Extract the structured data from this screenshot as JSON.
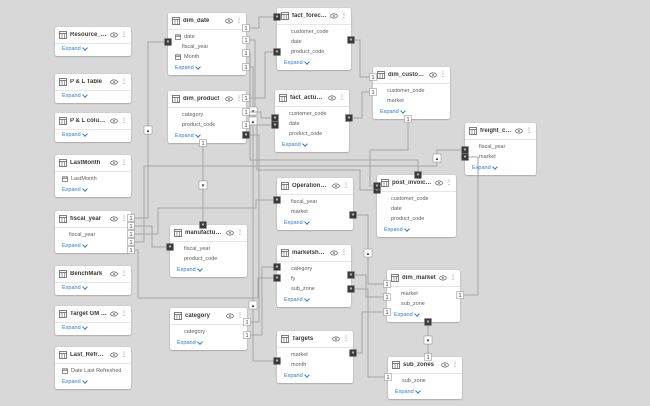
{
  "ui": {
    "expand_label": "Expand",
    "more_options_glyph": "⋮",
    "colors": {
      "canvas_bg": "#d8d8d8",
      "card_bg": "#ffffff",
      "accent_blue": "#2b7cd3",
      "line_gray": "#a6a6a6",
      "text_dark": "#3b3a39",
      "text_muted": "#605e5c"
    }
  },
  "tables": [
    {
      "id": "resource_measures",
      "name": "Resource_Measures",
      "fields": []
    },
    {
      "id": "pl_table",
      "name": "P & L Table",
      "fields": []
    },
    {
      "id": "pl_columns",
      "name": "P & L columns",
      "fields": []
    },
    {
      "id": "lastmonth",
      "name": "LastMonth",
      "fields": [
        {
          "name": "LastMonth",
          "icon": "calendar-icon"
        }
      ]
    },
    {
      "id": "fiscal_year",
      "name": "fiscal_year",
      "fields": [
        {
          "name": "fiscal_year",
          "icon": null
        }
      ]
    },
    {
      "id": "benchmark",
      "name": "BenchMark",
      "fields": []
    },
    {
      "id": "target_gm_gap",
      "name": "Target GM Gap",
      "fields": []
    },
    {
      "id": "last_refresh_date",
      "name": "Last_Refresh_Date",
      "fields": [
        {
          "name": "Date Last Refreshed",
          "icon": "calendar-icon"
        }
      ]
    },
    {
      "id": "dim_date",
      "name": "dim_date",
      "fields": [
        {
          "name": "date",
          "icon": "calendar-icon"
        },
        {
          "name": "fiscal_year",
          "icon": null
        },
        {
          "name": "Month",
          "icon": "calendar-icon"
        }
      ]
    },
    {
      "id": "dim_product",
      "name": "dim_product",
      "fields": [
        {
          "name": "category",
          "icon": null
        },
        {
          "name": "product_code",
          "icon": null
        }
      ]
    },
    {
      "id": "manufacturing_cost",
      "name": "manufacturing_cost",
      "fields": [
        {
          "name": "fiscal_year",
          "icon": null
        },
        {
          "name": "product_code",
          "icon": null
        }
      ]
    },
    {
      "id": "category",
      "name": "category",
      "fields": [
        {
          "name": "category",
          "icon": null
        }
      ]
    },
    {
      "id": "fact_forecast_monthly",
      "name": "fact_forecast_monthly",
      "fields": [
        {
          "name": "customer_code",
          "icon": null
        },
        {
          "name": "date",
          "icon": null
        },
        {
          "name": "product_code",
          "icon": null
        }
      ]
    },
    {
      "id": "fact_actual_estimates",
      "name": "fact_actual_estimates",
      "fields": [
        {
          "name": "customer_code",
          "icon": null
        },
        {
          "name": "date",
          "icon": null
        },
        {
          "name": "product_code",
          "icon": null
        }
      ]
    },
    {
      "id": "operational_expenses",
      "name": "Operational Expenses",
      "fields": [
        {
          "name": "fiscal_year",
          "icon": null
        },
        {
          "name": "market",
          "icon": null
        }
      ]
    },
    {
      "id": "marketshare",
      "name": "marketshare",
      "fields": [
        {
          "name": "category",
          "icon": null
        },
        {
          "name": "fy",
          "icon": null
        },
        {
          "name": "sub_zone",
          "icon": null
        }
      ]
    },
    {
      "id": "targets",
      "name": "Targets",
      "fields": [
        {
          "name": "market",
          "icon": null
        },
        {
          "name": "month",
          "icon": null
        }
      ]
    },
    {
      "id": "dim_customer",
      "name": "dim_customer",
      "fields": [
        {
          "name": "customer_code",
          "icon": null
        },
        {
          "name": "market",
          "icon": null
        }
      ]
    },
    {
      "id": "post_invoice_deductions",
      "name": "post_invoice_deducti...",
      "fields": [
        {
          "name": "customer_code",
          "icon": null
        },
        {
          "name": "date",
          "icon": null
        },
        {
          "name": "product_code",
          "icon": null
        }
      ]
    },
    {
      "id": "dim_market",
      "name": "dim_market",
      "fields": [
        {
          "name": "market",
          "icon": null
        },
        {
          "name": "sub_zone",
          "icon": null
        }
      ]
    },
    {
      "id": "sub_zones",
      "name": "sub_zones",
      "fields": [
        {
          "name": "sub_zone",
          "icon": null
        }
      ]
    },
    {
      "id": "freight_cost",
      "name": "freight_cost",
      "fields": [
        {
          "name": "fiscal_year",
          "icon": null
        },
        {
          "name": "market",
          "icon": null
        }
      ]
    }
  ],
  "relationships": [
    {
      "from": "fiscal_year",
      "to": "dim_date",
      "from_card": "1",
      "to_card": "*"
    },
    {
      "from": "fiscal_year",
      "to": "manufacturing_cost",
      "from_card": "1",
      "to_card": "*"
    },
    {
      "from": "fiscal_year",
      "to": "operational_expenses",
      "from_card": "1",
      "to_card": "*"
    },
    {
      "from": "fiscal_year",
      "to": "freight_cost",
      "from_card": "1",
      "to_card": "*"
    },
    {
      "from": "fiscal_year",
      "to": "marketshare",
      "from_card": "1",
      "to_card": "*"
    },
    {
      "from": "dim_date",
      "to": "fact_forecast_monthly",
      "from_card": "1",
      "to_card": "*"
    },
    {
      "from": "dim_date",
      "to": "fact_actual_estimates",
      "from_card": "1",
      "to_card": "*"
    },
    {
      "from": "dim_date",
      "to": "post_invoice_deductions",
      "from_card": "1",
      "to_card": "*"
    },
    {
      "from": "dim_date",
      "to": "targets",
      "from_card": "1",
      "to_card": "*"
    },
    {
      "from": "dim_product",
      "to": "fact_forecast_monthly",
      "from_card": "1",
      "to_card": "*"
    },
    {
      "from": "dim_product",
      "to": "fact_actual_estimates",
      "from_card": "1",
      "to_card": "*"
    },
    {
      "from": "dim_product",
      "to": "post_invoice_deductions",
      "from_card": "1",
      "to_card": "*"
    },
    {
      "from": "category",
      "to": "dim_product",
      "from_card": "1",
      "to_card": "*"
    },
    {
      "from": "category",
      "to": "marketshare",
      "from_card": "1",
      "to_card": "*"
    },
    {
      "from": "dim_product",
      "to": "manufacturing_cost",
      "from_card": "1",
      "to_card": "*"
    },
    {
      "from": "dim_customer",
      "to": "fact_forecast_monthly",
      "from_card": "1",
      "to_card": "*"
    },
    {
      "from": "dim_customer",
      "to": "fact_actual_estimates",
      "from_card": "1",
      "to_card": "*"
    },
    {
      "from": "dim_customer",
      "to": "post_invoice_deductions",
      "from_card": "1",
      "to_card": "*"
    },
    {
      "from": "dim_market",
      "to": "operational_expenses",
      "from_card": "1",
      "to_card": "*"
    },
    {
      "from": "dim_market",
      "to": "marketshare",
      "from_card": "1",
      "to_card": "*"
    },
    {
      "from": "dim_market",
      "to": "targets",
      "from_card": "1",
      "to_card": "*"
    },
    {
      "from": "sub_zones",
      "to": "dim_market",
      "from_card": "1",
      "to_card": "*"
    },
    {
      "from": "sub_zones",
      "to": "marketshare",
      "from_card": "1",
      "to_card": "*"
    },
    {
      "from": "dim_market",
      "to": "freight_cost",
      "from_card": "1",
      "to_card": "*"
    }
  ]
}
